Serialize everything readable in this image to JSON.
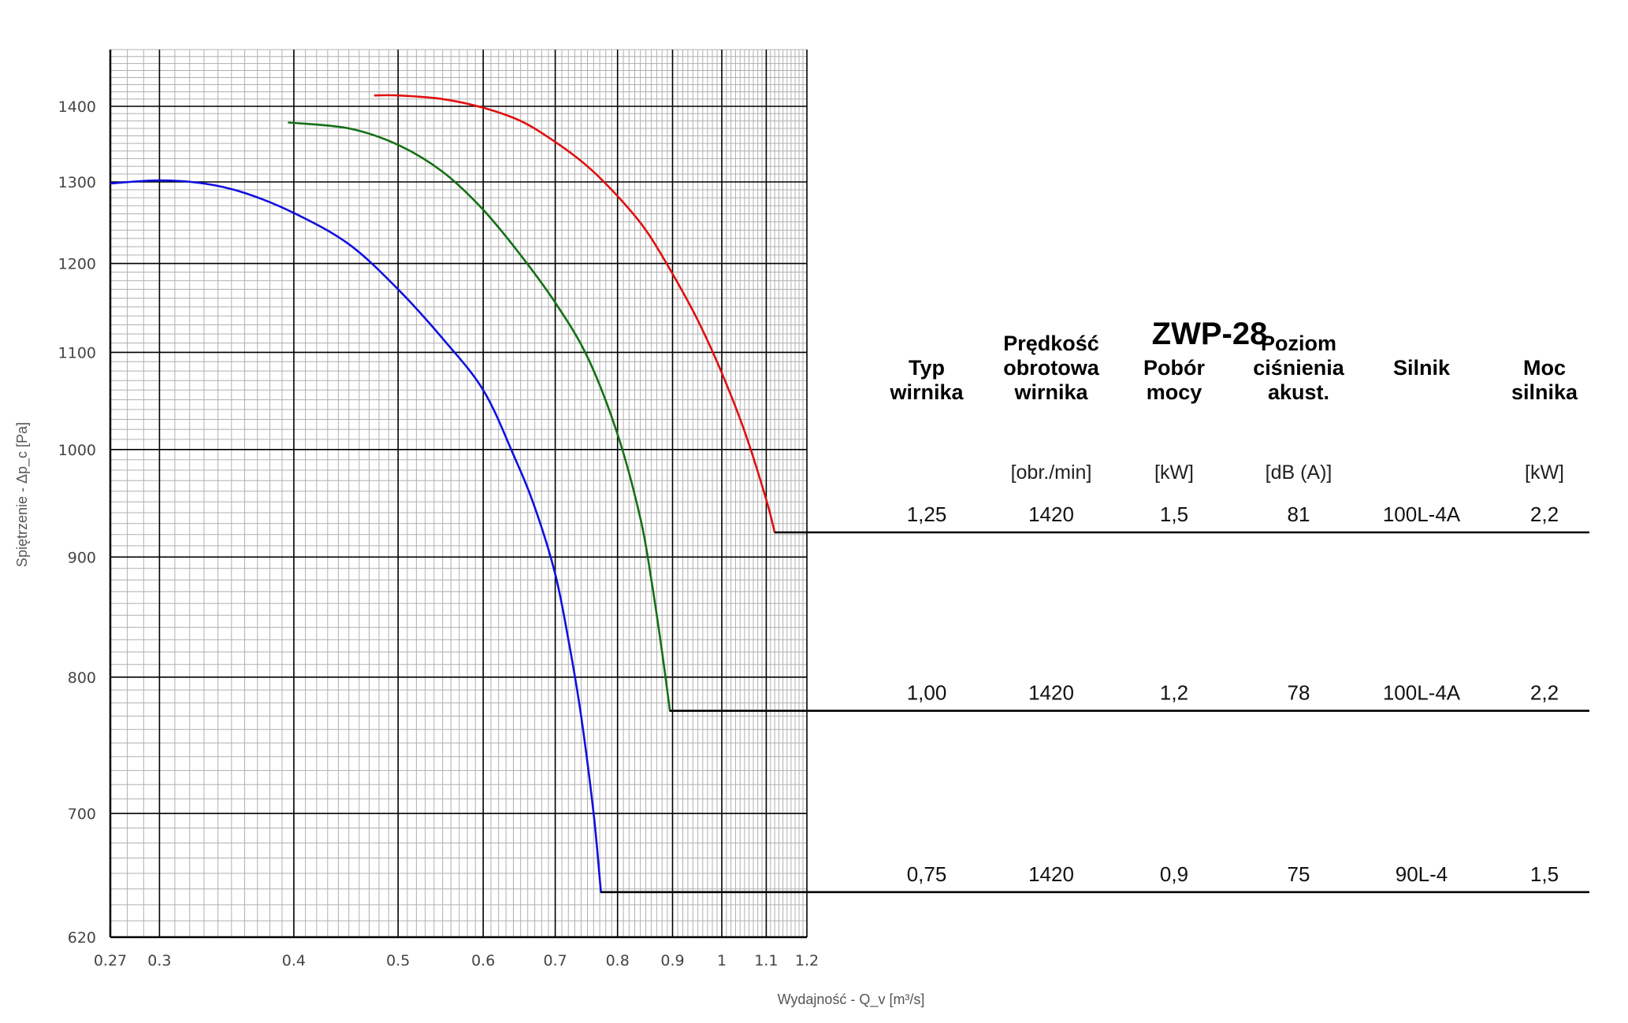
{
  "chart_data": {
    "type": "line",
    "title": "ZWP-28",
    "xlabel": "Wydajność - Q_v [m³/s]",
    "ylabel": "Spiętrzenie - Δp_c [Pa]",
    "x_scale": "log",
    "y_scale": "log",
    "xlim": [
      0.27,
      1.2
    ],
    "ylim": [
      620,
      1480
    ],
    "x_ticks": [
      "0.27",
      "0.3",
      "0.4",
      "0.5",
      "0.6",
      "0.7",
      "0.8",
      "0.9",
      "1",
      "1.1",
      "1.2"
    ],
    "y_ticks": [
      "620",
      "700",
      "800",
      "900",
      "1000",
      "1100",
      "1200",
      "1300",
      "1400"
    ],
    "grid": true,
    "series": [
      {
        "name": "0,75",
        "color": "#1010e0",
        "x": [
          0.27,
          0.3,
          0.33,
          0.36,
          0.4,
          0.45,
          0.5,
          0.55,
          0.6,
          0.64,
          0.67,
          0.7,
          0.72,
          0.74,
          0.76,
          0.772
        ],
        "y": [
          1298,
          1302,
          1298,
          1286,
          1261,
          1223,
          1170,
          1115,
          1060,
          995,
          945,
          885,
          830,
          770,
          700,
          648
        ]
      },
      {
        "name": "1,00",
        "color": "#157015",
        "x": [
          0.395,
          0.45,
          0.5,
          0.55,
          0.6,
          0.65,
          0.7,
          0.75,
          0.8,
          0.84,
          0.86,
          0.88,
          0.895
        ],
        "y": [
          1378,
          1370,
          1348,
          1313,
          1265,
          1210,
          1155,
          1095,
          1015,
          935,
          880,
          820,
          774
        ]
      },
      {
        "name": "1,25",
        "color": "#e01010",
        "x": [
          0.475,
          0.5,
          0.55,
          0.6,
          0.65,
          0.7,
          0.75,
          0.8,
          0.85,
          0.9,
          0.95,
          1.0,
          1.05,
          1.1,
          1.12
        ],
        "y": [
          1415,
          1415,
          1410,
          1398,
          1380,
          1352,
          1320,
          1282,
          1240,
          1188,
          1135,
          1078,
          1018,
          952,
          922
        ]
      }
    ]
  },
  "table": {
    "title": "ZWP-28",
    "headers": [
      {
        "lines": [
          "Typ",
          "wirnika"
        ],
        "unit": ""
      },
      {
        "lines": [
          "Prędkość",
          "obrotowa",
          "wirnika"
        ],
        "unit": "[obr./min]"
      },
      {
        "lines": [
          "Pobór",
          "mocy"
        ],
        "unit": "[kW]"
      },
      {
        "lines": [
          "Poziom",
          "ciśnienia",
          "akust."
        ],
        "unit": "[dB (A)]"
      },
      {
        "lines": [
          "Silnik"
        ],
        "unit": ""
      },
      {
        "lines": [
          "Moc",
          "silnika"
        ],
        "unit": "[kW]"
      }
    ],
    "rows": [
      {
        "cells": [
          "1,25",
          "1420",
          "1,5",
          "81",
          "100L-4A",
          "2,2"
        ],
        "line_y_pa": 922,
        "end_x": 1.12
      },
      {
        "cells": [
          "1,00",
          "1420",
          "1,2",
          "78",
          "100L-4A",
          "2,2"
        ],
        "line_y_pa": 774,
        "end_x": 0.895
      },
      {
        "cells": [
          "0,75",
          "1420",
          "0,9",
          "75",
          "90L-4",
          "1,5"
        ],
        "line_y_pa": 648,
        "end_x": 0.772
      }
    ]
  }
}
